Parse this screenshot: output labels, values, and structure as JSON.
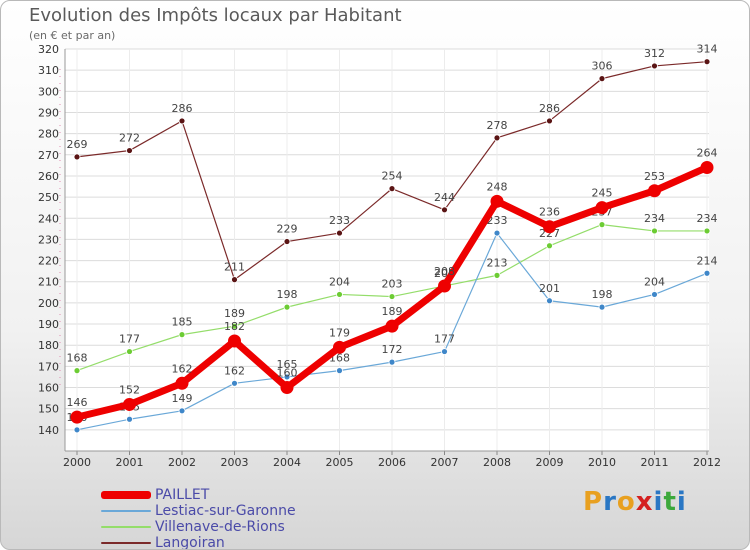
{
  "header": {
    "title": "Evolution des Impôts locaux par Habitant",
    "subtitle": "(en € et par an)"
  },
  "brand": {
    "letters": [
      "P",
      "r",
      "o",
      "x",
      "i",
      "t",
      "i"
    ],
    "colors": [
      "#e8a020",
      "#2a77c4",
      "#e8a020",
      "#d42020",
      "#2a77c4",
      "#3ca83c",
      "#2a77c4"
    ]
  },
  "chart_data": {
    "type": "line",
    "title": "Evolution des Impôts locaux par Habitant",
    "subtitle": "(en € et par an)",
    "xlabel": "",
    "ylabel": "",
    "ylim": [
      130,
      320
    ],
    "yticks": [
      140,
      150,
      160,
      170,
      180,
      190,
      200,
      210,
      220,
      230,
      240,
      250,
      260,
      270,
      280,
      290,
      300,
      310,
      320
    ],
    "grid": true,
    "legend": "bottom-left",
    "x": [
      "2000",
      "2001",
      "2002",
      "2003",
      "2004",
      "2005",
      "2006",
      "2007",
      "2008",
      "2009",
      "2010",
      "2011",
      "2012"
    ],
    "series": [
      {
        "name": "Langoiran",
        "color": "#7b2a2a",
        "dot": "#5a1414",
        "width": 1.2,
        "values": [
          269,
          272,
          286,
          211,
          229,
          233,
          254,
          244,
          278,
          286,
          306,
          312,
          314
        ]
      },
      {
        "name": "Villenave-de-Rions",
        "color": "#94dd6a",
        "dot": "#6ccc33",
        "width": 1.2,
        "values": [
          168,
          177,
          185,
          189,
          198,
          204,
          203,
          208,
          213,
          227,
          237,
          234,
          234
        ]
      },
      {
        "name": "Lestiac-sur-Garonne",
        "color": "#6aa8d8",
        "dot": "#3f87c9",
        "width": 1.2,
        "values": [
          140,
          145,
          149,
          162,
          165,
          168,
          172,
          177,
          233,
          201,
          198,
          204,
          214
        ]
      },
      {
        "name": "PAILLET",
        "color": "#ee0000",
        "dot": "#ee0000",
        "width": 7,
        "values": [
          146,
          152,
          162,
          182,
          160,
          179,
          189,
          208,
          248,
          236,
          245,
          253,
          264
        ]
      }
    ],
    "legend_order": [
      "PAILLET",
      "Lestiac-sur-Garonne",
      "Villenave-de-Rions",
      "Langoiran"
    ]
  }
}
